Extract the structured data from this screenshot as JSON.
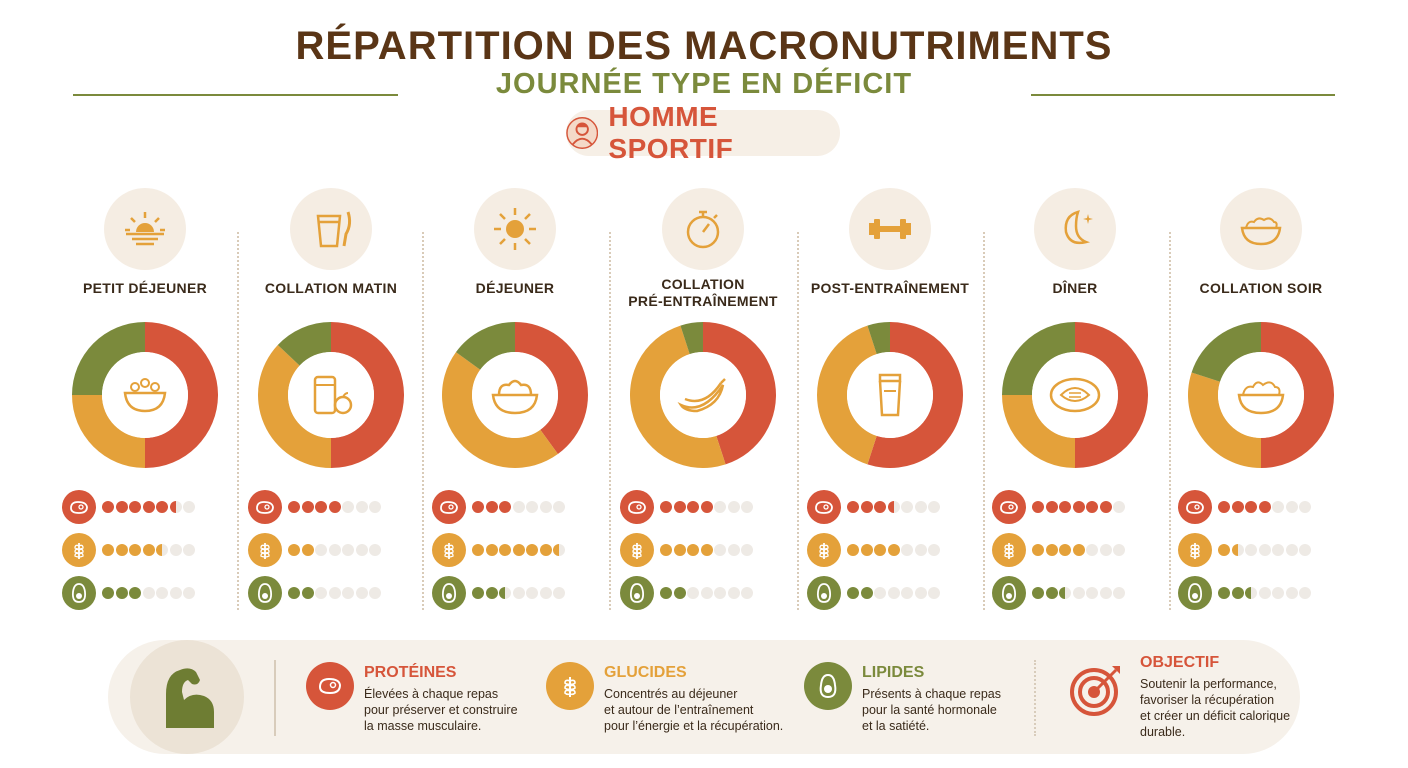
{
  "header": {
    "title": "RÉPARTITION DES MACRONUTRIMENTS",
    "subtitle": "JOURNÉE TYPE EN DÉFICIT",
    "persona": "HOMME SPORTIF"
  },
  "colors": {
    "protein": "#d6553a",
    "carbs": "#e4a13a",
    "fat": "#7b8a3c",
    "dot_empty": "#eeeae5"
  },
  "chart_data": {
    "type": "pie",
    "variant": "donut",
    "series": [
      {
        "name": "PROTÉINES",
        "color": "#d6553a"
      },
      {
        "name": "GLUCIDES",
        "color": "#e4a13a"
      },
      {
        "name": "LIPIDES",
        "color": "#7b8a3c"
      }
    ],
    "meals": [
      {
        "name": "PETIT DÉJEUNER",
        "icon": "sunrise-icon",
        "center_icon": "cereal-bowl-icon",
        "slices": [
          50,
          25,
          25
        ],
        "dots": {
          "protein": 5.5,
          "carbs": 4.5,
          "fat": 3
        }
      },
      {
        "name": "COLLATION MATIN",
        "icon": "yogurt-icon",
        "center_icon": "yogurt-apple-icon",
        "slices": [
          50,
          37,
          13
        ],
        "dots": {
          "protein": 4,
          "carbs": 2,
          "fat": 2
        }
      },
      {
        "name": "DÉJEUNER",
        "icon": "sun-icon",
        "center_icon": "rice-bowl-icon",
        "slices": [
          40,
          45,
          15
        ],
        "dots": {
          "protein": 3,
          "carbs": 6.5,
          "fat": 2.5
        }
      },
      {
        "name": "COLLATION\nPRÉ-ENTRAÎNEMENT",
        "icon": "stopwatch-icon",
        "center_icon": "banana-icon",
        "slices": [
          45,
          50,
          5
        ],
        "dots": {
          "protein": 4,
          "carbs": 4,
          "fat": 2
        }
      },
      {
        "name": "POST-ENTRAÎNEMENT",
        "icon": "dumbbell-icon",
        "center_icon": "shaker-icon",
        "slices": [
          55,
          40,
          5
        ],
        "dots": {
          "protein": 3.5,
          "carbs": 4,
          "fat": 2
        }
      },
      {
        "name": "DÎNER",
        "icon": "moon-icon",
        "center_icon": "salmon-plate-icon",
        "slices": [
          50,
          25,
          25
        ],
        "dots": {
          "protein": 6,
          "carbs": 4,
          "fat": 2.5
        }
      },
      {
        "name": "COLLATION SOIR",
        "icon": "cottage-cheese-icon",
        "center_icon": "cottage-cheese-bowl-icon",
        "slices": [
          50,
          30,
          20
        ],
        "dots": {
          "protein": 4,
          "carbs": 1.5,
          "fat": 2.5
        }
      }
    ],
    "dots_max": 7
  },
  "legend": {
    "protein": {
      "title": "PROTÉINES",
      "desc": "Élevées à chaque repas\npour préserver et construire\nla masse musculaire."
    },
    "carbs": {
      "title": "GLUCIDES",
      "desc": "Concentrés au déjeuner\net autour de l’entraînement\npour l’énergie et la récupération."
    },
    "fat": {
      "title": "LIPIDES",
      "desc": "Présents à chaque repas\npour la santé hormonale\net la satiété."
    },
    "goal": {
      "title": "OBJECTIF",
      "desc": "Soutenir la performance,\nfavoriser la récupération\net créer un déficit calorique\ndurable."
    }
  }
}
